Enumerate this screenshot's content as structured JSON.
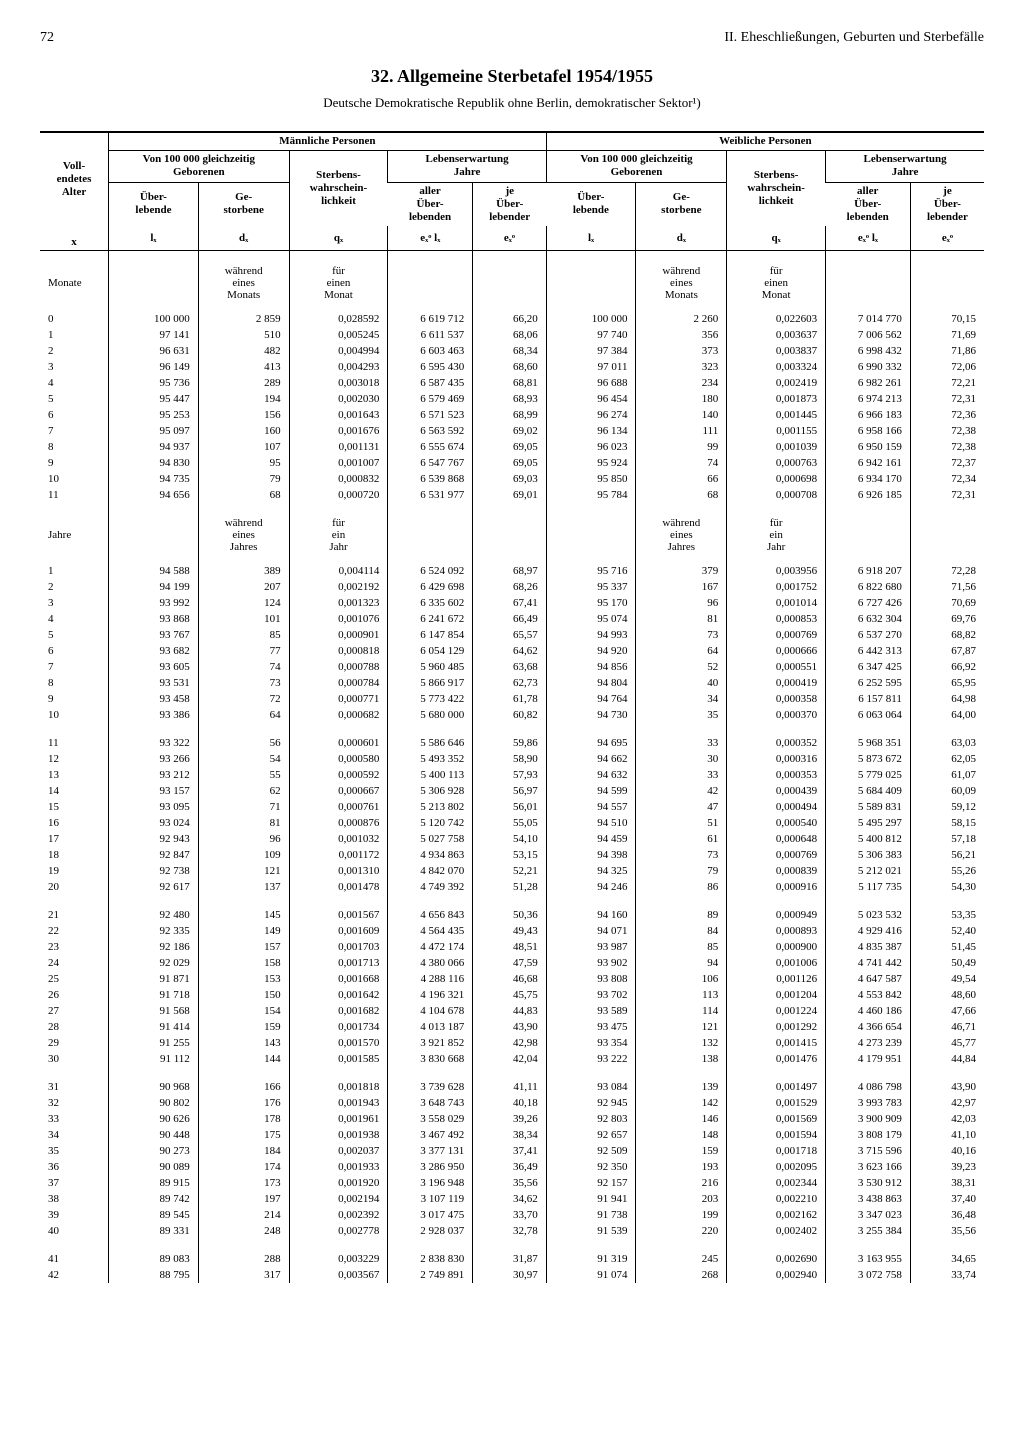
{
  "page": {
    "number": "72",
    "section": "II.  Eheschließungen, Geburten und Sterbefälle",
    "title": "32. Allgemeine Sterbetafel 1954/1955",
    "subtitle": "Deutsche Demokratische Republik ohne Berlin, demokratischer Sektor¹)"
  },
  "headers": {
    "age": "Voll-\nendetes\nAlter",
    "male": "Männliche Personen",
    "female": "Weibliche Personen",
    "born": "Von 100 000 gleichzeitig\nGeborenen",
    "prob": "Sterbens-\nwahrschein-\nlichkeit",
    "expect": "Lebenserwartung\nJahre",
    "surv": "Über-\nlebende",
    "died": "Ge-\nstorbene",
    "all": "aller\nÜber-\nlebenden",
    "each": "je\nÜber-\nlebender",
    "x": "x",
    "lx": "lₓ",
    "dx": "dₓ",
    "qx": "qₓ",
    "exlx": "eₓᵒ  lₓ",
    "ex": "eₓᵒ"
  },
  "subrows": {
    "months": "Monate",
    "years": "Jahre",
    "per_month_d": "während\neines\nMonats",
    "per_month_q": "für\neinen\nMonat",
    "per_year_d": "während\neines\nJahres",
    "per_year_q": "für\nein\nJahr"
  },
  "blocks": [
    {
      "label_col1": "Monate",
      "sub_d": "während\neines\nMonats",
      "sub_q": "für\neinen\nMonat",
      "rows": [
        [
          "0",
          "100 000",
          "2 859",
          "0,028592",
          "6 619 712",
          "66,20",
          "100 000",
          "2 260",
          "0,022603",
          "7 014 770",
          "70,15"
        ],
        [
          "1",
          "97 141",
          "510",
          "0,005245",
          "6 611 537",
          "68,06",
          "97 740",
          "356",
          "0,003637",
          "7 006 562",
          "71,69"
        ],
        [
          "2",
          "96 631",
          "482",
          "0,004994",
          "6 603 463",
          "68,34",
          "97 384",
          "373",
          "0,003837",
          "6 998 432",
          "71,86"
        ],
        [
          "3",
          "96 149",
          "413",
          "0,004293",
          "6 595 430",
          "68,60",
          "97 011",
          "323",
          "0,003324",
          "6 990 332",
          "72,06"
        ],
        [
          "4",
          "95 736",
          "289",
          "0,003018",
          "6 587 435",
          "68,81",
          "96 688",
          "234",
          "0,002419",
          "6 982 261",
          "72,21"
        ],
        [
          "5",
          "95 447",
          "194",
          "0,002030",
          "6 579 469",
          "68,93",
          "96 454",
          "180",
          "0,001873",
          "6 974 213",
          "72,31"
        ],
        [
          "6",
          "95 253",
          "156",
          "0,001643",
          "6 571 523",
          "68,99",
          "96 274",
          "140",
          "0,001445",
          "6 966 183",
          "72,36"
        ],
        [
          "7",
          "95 097",
          "160",
          "0,001676",
          "6 563 592",
          "69,02",
          "96 134",
          "111",
          "0,001155",
          "6 958 166",
          "72,38"
        ],
        [
          "8",
          "94 937",
          "107",
          "0,001131",
          "6 555 674",
          "69,05",
          "96 023",
          "99",
          "0,001039",
          "6 950 159",
          "72,38"
        ],
        [
          "9",
          "94 830",
          "95",
          "0,001007",
          "6 547 767",
          "69,05",
          "95 924",
          "74",
          "0,000763",
          "6 942 161",
          "72,37"
        ],
        [
          "10",
          "94 735",
          "79",
          "0,000832",
          "6 539 868",
          "69,03",
          "95 850",
          "66",
          "0,000698",
          "6 934 170",
          "72,34"
        ],
        [
          "11",
          "94 656",
          "68",
          "0,000720",
          "6 531 977",
          "69,01",
          "95 784",
          "68",
          "0,000708",
          "6 926 185",
          "72,31"
        ]
      ]
    },
    {
      "label_col1": "Jahre",
      "sub_d": "während\neines\nJahres",
      "sub_q": "für\nein\nJahr",
      "rows": [
        [
          "1",
          "94 588",
          "389",
          "0,004114",
          "6 524 092",
          "68,97",
          "95 716",
          "379",
          "0,003956",
          "6 918 207",
          "72,28"
        ],
        [
          "2",
          "94 199",
          "207",
          "0,002192",
          "6 429 698",
          "68,26",
          "95 337",
          "167",
          "0,001752",
          "6 822 680",
          "71,56"
        ],
        [
          "3",
          "93 992",
          "124",
          "0,001323",
          "6 335 602",
          "67,41",
          "95 170",
          "96",
          "0,001014",
          "6 727 426",
          "70,69"
        ],
        [
          "4",
          "93 868",
          "101",
          "0,001076",
          "6 241 672",
          "66,49",
          "95 074",
          "81",
          "0,000853",
          "6 632 304",
          "69,76"
        ],
        [
          "5",
          "93 767",
          "85",
          "0,000901",
          "6 147 854",
          "65,57",
          "94 993",
          "73",
          "0,000769",
          "6 537 270",
          "68,82"
        ],
        [
          "6",
          "93 682",
          "77",
          "0,000818",
          "6 054 129",
          "64,62",
          "94 920",
          "64",
          "0,000666",
          "6 442 313",
          "67,87"
        ],
        [
          "7",
          "93 605",
          "74",
          "0,000788",
          "5 960 485",
          "63,68",
          "94 856",
          "52",
          "0,000551",
          "6 347 425",
          "66,92"
        ],
        [
          "8",
          "93 531",
          "73",
          "0,000784",
          "5 866 917",
          "62,73",
          "94 804",
          "40",
          "0,000419",
          "6 252 595",
          "65,95"
        ],
        [
          "9",
          "93 458",
          "72",
          "0,000771",
          "5 773 422",
          "61,78",
          "94 764",
          "34",
          "0,000358",
          "6 157 811",
          "64,98"
        ],
        [
          "10",
          "93 386",
          "64",
          "0,000682",
          "5 680 000",
          "60,82",
          "94 730",
          "35",
          "0,000370",
          "6 063 064",
          "64,00"
        ]
      ]
    },
    {
      "rows": [
        [
          "11",
          "93 322",
          "56",
          "0,000601",
          "5 586 646",
          "59,86",
          "94 695",
          "33",
          "0,000352",
          "5 968 351",
          "63,03"
        ],
        [
          "12",
          "93 266",
          "54",
          "0,000580",
          "5 493 352",
          "58,90",
          "94 662",
          "30",
          "0,000316",
          "5 873 672",
          "62,05"
        ],
        [
          "13",
          "93 212",
          "55",
          "0,000592",
          "5 400 113",
          "57,93",
          "94 632",
          "33",
          "0,000353",
          "5 779 025",
          "61,07"
        ],
        [
          "14",
          "93 157",
          "62",
          "0,000667",
          "5 306 928",
          "56,97",
          "94 599",
          "42",
          "0,000439",
          "5 684 409",
          "60,09"
        ],
        [
          "15",
          "93 095",
          "71",
          "0,000761",
          "5 213 802",
          "56,01",
          "94 557",
          "47",
          "0,000494",
          "5 589 831",
          "59,12"
        ],
        [
          "16",
          "93 024",
          "81",
          "0,000876",
          "5 120 742",
          "55,05",
          "94 510",
          "51",
          "0,000540",
          "5 495 297",
          "58,15"
        ],
        [
          "17",
          "92 943",
          "96",
          "0,001032",
          "5 027 758",
          "54,10",
          "94 459",
          "61",
          "0,000648",
          "5 400 812",
          "57,18"
        ],
        [
          "18",
          "92 847",
          "109",
          "0,001172",
          "4 934 863",
          "53,15",
          "94 398",
          "73",
          "0,000769",
          "5 306 383",
          "56,21"
        ],
        [
          "19",
          "92 738",
          "121",
          "0,001310",
          "4 842 070",
          "52,21",
          "94 325",
          "79",
          "0,000839",
          "5 212 021",
          "55,26"
        ],
        [
          "20",
          "92 617",
          "137",
          "0,001478",
          "4 749 392",
          "51,28",
          "94 246",
          "86",
          "0,000916",
          "5 117 735",
          "54,30"
        ]
      ]
    },
    {
      "rows": [
        [
          "21",
          "92 480",
          "145",
          "0,001567",
          "4 656 843",
          "50,36",
          "94 160",
          "89",
          "0,000949",
          "5 023 532",
          "53,35"
        ],
        [
          "22",
          "92 335",
          "149",
          "0,001609",
          "4 564 435",
          "49,43",
          "94 071",
          "84",
          "0,000893",
          "4 929 416",
          "52,40"
        ],
        [
          "23",
          "92 186",
          "157",
          "0,001703",
          "4 472 174",
          "48,51",
          "93 987",
          "85",
          "0,000900",
          "4 835 387",
          "51,45"
        ],
        [
          "24",
          "92 029",
          "158",
          "0,001713",
          "4 380 066",
          "47,59",
          "93 902",
          "94",
          "0,001006",
          "4 741 442",
          "50,49"
        ],
        [
          "25",
          "91 871",
          "153",
          "0,001668",
          "4 288 116",
          "46,68",
          "93 808",
          "106",
          "0,001126",
          "4 647 587",
          "49,54"
        ],
        [
          "26",
          "91 718",
          "150",
          "0,001642",
          "4 196 321",
          "45,75",
          "93 702",
          "113",
          "0,001204",
          "4 553 842",
          "48,60"
        ],
        [
          "27",
          "91 568",
          "154",
          "0,001682",
          "4 104 678",
          "44,83",
          "93 589",
          "114",
          "0,001224",
          "4 460 186",
          "47,66"
        ],
        [
          "28",
          "91 414",
          "159",
          "0,001734",
          "4 013 187",
          "43,90",
          "93 475",
          "121",
          "0,001292",
          "4 366 654",
          "46,71"
        ],
        [
          "29",
          "91 255",
          "143",
          "0,001570",
          "3 921 852",
          "42,98",
          "93 354",
          "132",
          "0,001415",
          "4 273 239",
          "45,77"
        ],
        [
          "30",
          "91 112",
          "144",
          "0,001585",
          "3 830 668",
          "42,04",
          "93 222",
          "138",
          "0,001476",
          "4 179 951",
          "44,84"
        ]
      ]
    },
    {
      "rows": [
        [
          "31",
          "90 968",
          "166",
          "0,001818",
          "3 739 628",
          "41,11",
          "93 084",
          "139",
          "0,001497",
          "4 086 798",
          "43,90"
        ],
        [
          "32",
          "90 802",
          "176",
          "0,001943",
          "3 648 743",
          "40,18",
          "92 945",
          "142",
          "0,001529",
          "3 993 783",
          "42,97"
        ],
        [
          "33",
          "90 626",
          "178",
          "0,001961",
          "3 558 029",
          "39,26",
          "92 803",
          "146",
          "0,001569",
          "3 900 909",
          "42,03"
        ],
        [
          "34",
          "90 448",
          "175",
          "0,001938",
          "3 467 492",
          "38,34",
          "92 657",
          "148",
          "0,001594",
          "3 808 179",
          "41,10"
        ],
        [
          "35",
          "90 273",
          "184",
          "0,002037",
          "3 377 131",
          "37,41",
          "92 509",
          "159",
          "0,001718",
          "3 715 596",
          "40,16"
        ],
        [
          "36",
          "90 089",
          "174",
          "0,001933",
          "3 286 950",
          "36,49",
          "92 350",
          "193",
          "0,002095",
          "3 623 166",
          "39,23"
        ],
        [
          "37",
          "89 915",
          "173",
          "0,001920",
          "3 196 948",
          "35,56",
          "92 157",
          "216",
          "0,002344",
          "3 530 912",
          "38,31"
        ],
        [
          "38",
          "89 742",
          "197",
          "0,002194",
          "3 107 119",
          "34,62",
          "91 941",
          "203",
          "0,002210",
          "3 438 863",
          "37,40"
        ],
        [
          "39",
          "89 545",
          "214",
          "0,002392",
          "3 017 475",
          "33,70",
          "91 738",
          "199",
          "0,002162",
          "3 347 023",
          "36,48"
        ],
        [
          "40",
          "89 331",
          "248",
          "0,002778",
          "2 928 037",
          "32,78",
          "91 539",
          "220",
          "0,002402",
          "3 255 384",
          "35,56"
        ]
      ]
    },
    {
      "rows": [
        [
          "41",
          "89 083",
          "288",
          "0,003229",
          "2 838 830",
          "31,87",
          "91 319",
          "245",
          "0,002690",
          "3 163 955",
          "34,65"
        ],
        [
          "42",
          "88 795",
          "317",
          "0,003567",
          "2 749 891",
          "30,97",
          "91 074",
          "268",
          "0,002940",
          "3 072 758",
          "33,74"
        ]
      ]
    }
  ]
}
